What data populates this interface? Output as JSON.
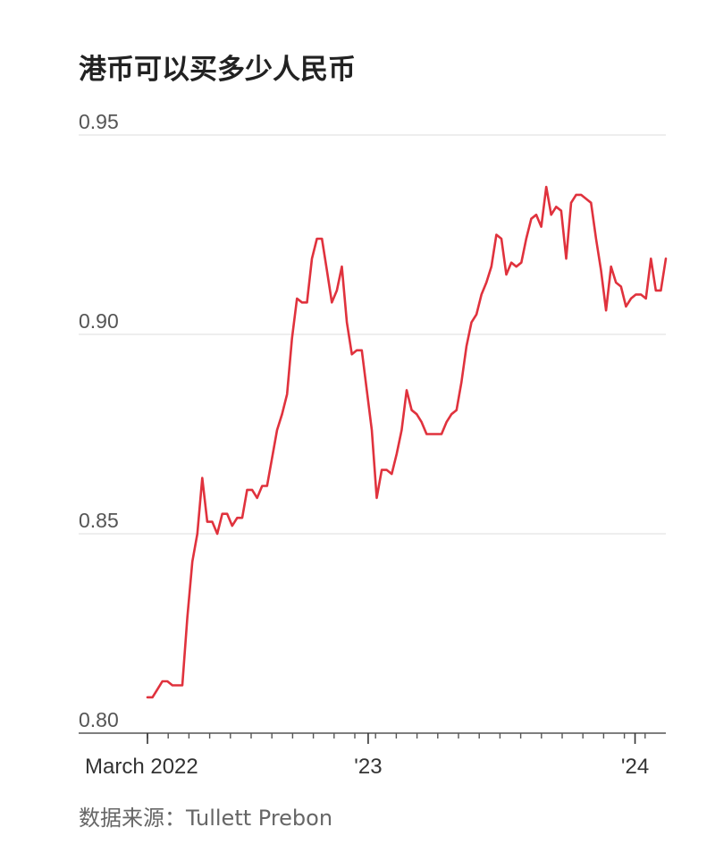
{
  "title": "港币可以买多少人民币",
  "source": "数据来源：Tullett Prebon",
  "chart_data": {
    "type": "line",
    "title": "港币可以买多少人民币",
    "xlabel": "",
    "ylabel": "",
    "ylim": [
      0.8,
      0.95
    ],
    "yticks": [
      "0.95",
      "0.90",
      "0.85",
      "0.80"
    ],
    "yticks_values": [
      0.95,
      0.9,
      0.85,
      0.8
    ],
    "xtick_labels": [
      {
        "label": "March 2022",
        "week": 0
      },
      {
        "label": "'23",
        "week": 43
      },
      {
        "label": "'24",
        "week": 95
      }
    ],
    "x_range_weeks": [
      0,
      101
    ],
    "minor_tick_count": 25,
    "grid": true,
    "legend": "none",
    "line_color": "#e0323d",
    "series": [
      {
        "values": [
          0.809,
          0.809,
          0.811,
          0.813,
          0.813,
          0.812,
          0.812,
          0.812,
          0.829,
          0.843,
          0.85,
          0.864,
          0.853,
          0.853,
          0.85,
          0.855,
          0.855,
          0.852,
          0.854,
          0.854,
          0.861,
          0.861,
          0.859,
          0.862,
          0.862,
          0.869,
          0.876,
          0.88,
          0.885,
          0.899,
          0.909,
          0.908,
          0.908,
          0.919,
          0.924,
          0.924,
          0.916,
          0.908,
          0.911,
          0.917,
          0.903,
          0.895,
          0.896,
          0.896,
          0.886,
          0.876,
          0.859,
          0.866,
          0.866,
          0.865,
          0.87,
          0.876,
          0.886,
          0.881,
          0.88,
          0.878,
          0.875,
          0.875,
          0.875,
          0.875,
          0.878,
          0.88,
          0.881,
          0.888,
          0.897,
          0.903,
          0.905,
          0.91,
          0.913,
          0.917,
          0.925,
          0.924,
          0.915,
          0.918,
          0.917,
          0.918,
          0.924,
          0.929,
          0.93,
          0.927,
          0.937,
          0.93,
          0.932,
          0.931,
          0.919,
          0.933,
          0.935,
          0.935,
          0.934,
          0.933,
          0.924,
          0.916,
          0.906,
          0.917,
          0.913,
          0.912,
          0.907,
          0.909,
          0.91,
          0.91,
          0.909,
          0.919,
          0.911,
          0.911,
          0.919
        ]
      }
    ]
  }
}
